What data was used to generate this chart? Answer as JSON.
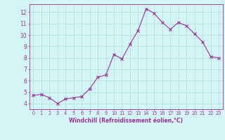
{
  "x": [
    0,
    1,
    2,
    3,
    4,
    5,
    6,
    7,
    8,
    9,
    10,
    11,
    12,
    13,
    14,
    15,
    16,
    17,
    18,
    19,
    20,
    21,
    22,
    23
  ],
  "y": [
    4.7,
    4.8,
    4.5,
    4.0,
    4.4,
    4.5,
    4.6,
    5.3,
    6.3,
    6.5,
    8.3,
    7.9,
    9.2,
    10.4,
    12.3,
    11.9,
    11.1,
    10.5,
    11.1,
    10.8,
    10.1,
    9.4,
    8.1,
    8.0
  ],
  "line_color": "#993399",
  "marker": "x",
  "marker_color": "#993399",
  "bg_color": "#d4f5f5",
  "grid_color": "#b0dede",
  "xlabel": "Windchill (Refroidissement éolien,°C)",
  "xlabel_color": "#993399",
  "tick_color": "#993399",
  "xlim": [
    -0.5,
    23.5
  ],
  "ylim": [
    3.5,
    12.7
  ],
  "yticks": [
    4,
    5,
    6,
    7,
    8,
    9,
    10,
    11,
    12
  ],
  "xticks": [
    0,
    1,
    2,
    3,
    4,
    5,
    6,
    7,
    8,
    9,
    10,
    11,
    12,
    13,
    14,
    15,
    16,
    17,
    18,
    19,
    20,
    21,
    22,
    23
  ],
  "xtick_labels": [
    "0",
    "1",
    "2",
    "3",
    "4",
    "5",
    "6",
    "7",
    "8",
    "9",
    "10",
    "11",
    "12",
    "13",
    "14",
    "15",
    "16",
    "17",
    "18",
    "19",
    "20",
    "21",
    "22",
    "23"
  ],
  "linewidth": 0.8,
  "markersize": 2.5,
  "xlabel_fontsize": 5.5,
  "tick_fontsize_x": 4.8,
  "tick_fontsize_y": 5.5
}
